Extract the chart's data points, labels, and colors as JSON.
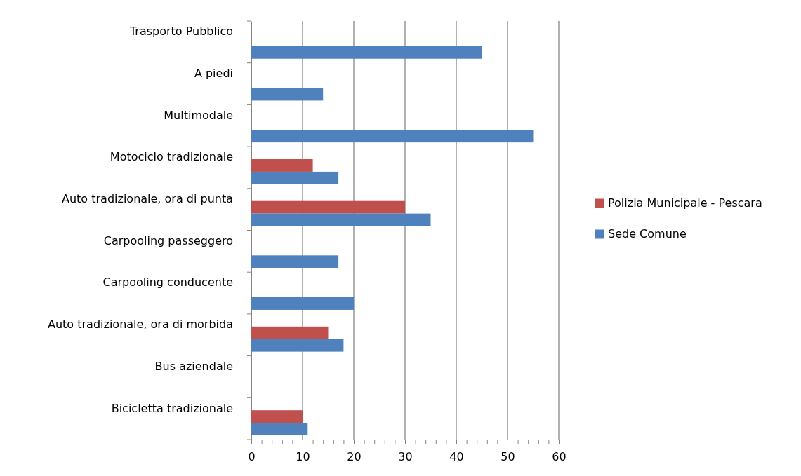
{
  "chart_data": {
    "type": "bar",
    "orientation": "horizontal",
    "categories": [
      "Trasporto Pubblico",
      "A piedi",
      "Multimodale",
      "Motociclo tradizionale",
      "Auto tradizionale,  ora di punta",
      "Carpooling passeggero",
      "Carpooling conducente",
      "Auto tradizionale,  ora di morbida",
      "Bus aziendale",
      "Bicicletta tradizionale"
    ],
    "series": [
      {
        "name": "Polizia Municipale - Pescara",
        "color": "#c0504d",
        "values": [
          0,
          0,
          0,
          12,
          30,
          0,
          0,
          15,
          0,
          10
        ]
      },
      {
        "name": "Sede Comune",
        "color": "#4f81bd",
        "values": [
          45,
          14,
          55,
          17,
          35,
          17,
          20,
          18,
          0,
          11
        ]
      }
    ],
    "xlim": [
      0,
      60
    ],
    "xticks": [
      0,
      {
        "value": 2,
        "label": null
      },
      {
        "value": 4,
        "label": null
      },
      {
        "value": 6,
        "label": null
      },
      {
        "value": 8,
        "label": null
      },
      10,
      {
        "value": 12,
        "label": null
      },
      {
        "value": 14,
        "label": null
      },
      {
        "value": 16,
        "label": null
      },
      {
        "value": 18,
        "label": null
      },
      20,
      {
        "value": 22,
        "label": null
      },
      {
        "value": 24,
        "label": null
      },
      {
        "value": 26,
        "label": null
      },
      {
        "value": 28,
        "label": null
      },
      30,
      {
        "value": 32,
        "label": null
      },
      {
        "value": 34,
        "label": null
      },
      {
        "value": 36,
        "label": null
      },
      {
        "value": 38,
        "label": null
      },
      40,
      {
        "value": 42,
        "label": null
      },
      {
        "value": 44,
        "label": null
      },
      {
        "value": 46,
        "label": null
      },
      {
        "value": 48,
        "label": null
      },
      50,
      {
        "value": 52,
        "label": null
      },
      {
        "value": 54,
        "label": null
      },
      {
        "value": 56,
        "label": null
      },
      {
        "value": 58,
        "label": null
      },
      60
    ],
    "grid": "x",
    "legend": "right"
  }
}
